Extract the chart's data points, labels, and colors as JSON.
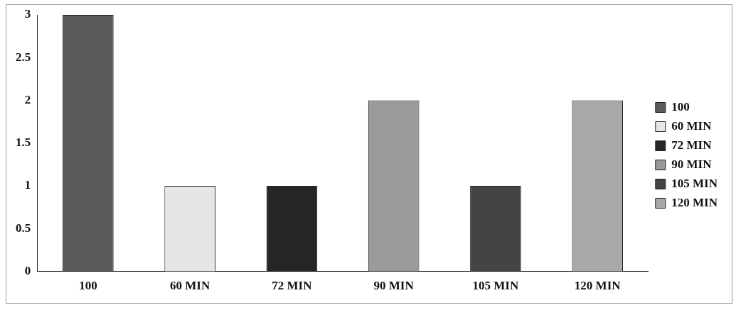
{
  "chart_data": {
    "type": "bar",
    "categories": [
      "100",
      "60 MIN",
      "72 MIN",
      "90 MIN",
      "105 MIN",
      "120 MIN"
    ],
    "series": [
      {
        "name": "100",
        "color": "#5a5a5a",
        "values": [
          3,
          null,
          null,
          null,
          null,
          null
        ]
      },
      {
        "name": "60 MIN",
        "color": "#e6e6e6",
        "values": [
          null,
          1,
          null,
          null,
          null,
          null
        ]
      },
      {
        "name": "72 MIN",
        "color": "#262626",
        "values": [
          null,
          null,
          1,
          null,
          null,
          null
        ]
      },
      {
        "name": "90 MIN",
        "color": "#9a9a9a",
        "values": [
          null,
          null,
          null,
          2,
          null,
          null
        ]
      },
      {
        "name": "105 MIN",
        "color": "#444444",
        "values": [
          null,
          null,
          null,
          null,
          1,
          null
        ]
      },
      {
        "name": "120 MIN",
        "color": "#a8a8a8",
        "values": [
          null,
          null,
          null,
          null,
          null,
          2
        ]
      }
    ],
    "ylim": [
      0,
      3
    ],
    "yticks": [
      0,
      0.5,
      1,
      1.5,
      2,
      2.5,
      3
    ],
    "grid": false,
    "legend": "right"
  }
}
